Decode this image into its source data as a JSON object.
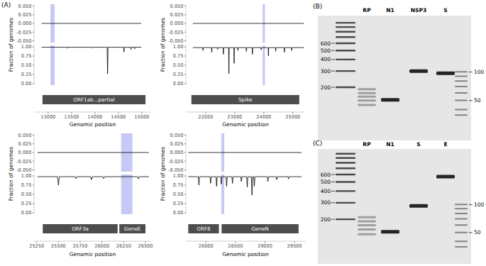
{
  "panel_label": "(A)",
  "chart_data": [
    {
      "type": "line",
      "xlabel": "Genomic position",
      "ylabel": "Fraction of genomes",
      "xlim": [
        12700,
        15200
      ],
      "xticks": [
        13000,
        13500,
        14000,
        14500,
        15000
      ],
      "ylim": [
        -0.04,
        1.04
      ],
      "yticks": [
        {
          "value": 0,
          "label": "0.00"
        },
        0.25,
        {
          "value": 0.5,
          "label": "0.50"
        },
        0.75,
        {
          "value": 1,
          "label": "1.00"
        }
      ],
      "y2lim": [
        -0.055,
        0.055
      ],
      "y2ticks": [
        {
          "value": -0.05,
          "label": "-0.050"
        },
        -0.025,
        {
          "value": 0,
          "label": "0.000"
        },
        0.025,
        {
          "value": 0.05,
          "label": "0.050"
        }
      ],
      "grid": false,
      "highlight": [
        13050,
        13140
      ],
      "genes": [
        {
          "label": "ORF1ab...partial",
          "start": 12880,
          "end": 15080
        }
      ],
      "series": [
        {
          "color": "#000000",
          "x": [
            12860,
            13400,
            13410,
            13420,
            13930,
            13940,
            13950,
            14260,
            14270,
            14280,
            14610,
            14620,
            14630,
            14760,
            14770,
            14780,
            14840,
            14850,
            14860,
            14990
          ],
          "values": [
            0.99,
            0.99,
            0.96,
            0.99,
            0.99,
            0.97,
            0.99,
            0.99,
            0.27,
            0.99,
            0.99,
            0.86,
            0.99,
            0.99,
            0.93,
            0.99,
            0.99,
            0.95,
            0.99,
            0.99
          ]
        },
        {
          "color": "#000000",
          "axis": "y2",
          "x": [
            12860,
            14990
          ],
          "values": [
            0,
            0
          ]
        }
      ]
    },
    {
      "type": "line",
      "xlabel": "Genomic position",
      "ylabel": "Fraction of genomes",
      "xlim": [
        21320,
        25420
      ],
      "xticks": [
        22000,
        23000,
        24000,
        25000
      ],
      "ylim": [
        -0.04,
        1.04
      ],
      "yticks": [
        {
          "value": 0,
          "label": "0.00"
        },
        0.25,
        {
          "value": 0.5,
          "label": "0.50"
        },
        0.75,
        {
          "value": 1,
          "label": "1.00"
        }
      ],
      "y2lim": [
        -0.055,
        0.055
      ],
      "y2ticks": [
        {
          "value": -0.05,
          "label": "-0.050"
        },
        -0.025,
        {
          "value": 0,
          "label": "0.000"
        },
        0.025,
        {
          "value": 0.05,
          "label": "0.050"
        }
      ],
      "grid": false,
      "highlight": [
        23960,
        24040
      ],
      "genes": [
        {
          "label": "Spike",
          "start": 21510,
          "end": 25220
        }
      ],
      "series": [
        {
          "color": "#000000",
          "x": [
            21560,
            21900,
            21910,
            21920,
            22200,
            22210,
            22220,
            22400,
            22410,
            22420,
            22600,
            22610,
            22620,
            22790,
            22800,
            22810,
            22970,
            22980,
            22990,
            23100,
            23110,
            23120,
            23390,
            23400,
            23410,
            23600,
            23610,
            23620,
            23900,
            23910,
            23920,
            24150,
            24160,
            24170,
            24400,
            24410,
            24420,
            24700,
            24710,
            24720,
            24950,
            24960,
            24970,
            25380
          ],
          "values": [
            0.98,
            0.98,
            0.9,
            0.98,
            0.98,
            0.85,
            0.98,
            0.98,
            0.93,
            0.98,
            0.98,
            0.8,
            0.98,
            0.98,
            0.27,
            0.98,
            0.98,
            0.55,
            0.98,
            0.98,
            0.9,
            0.98,
            0.98,
            0.88,
            0.98,
            0.98,
            0.8,
            0.98,
            0.98,
            0.92,
            0.98,
            0.98,
            0.75,
            0.98,
            0.98,
            0.88,
            0.98,
            0.98,
            0.85,
            0.98,
            0.98,
            0.9,
            0.98,
            0.98
          ]
        },
        {
          "color": "#000000",
          "axis": "y2",
          "x": [
            21560,
            25380
          ],
          "values": [
            0,
            0
          ]
        }
      ]
    },
    {
      "type": "line",
      "xlabel": "Genomic position",
      "ylabel": "Fraction of genomes",
      "xlim": [
        25220,
        26565
      ],
      "xticks": [
        25250,
        25500,
        25750,
        26000,
        26250,
        26500
      ],
      "ylim": [
        -0.04,
        1.04
      ],
      "yticks": [
        {
          "value": 0,
          "label": "0.00"
        },
        0.25,
        {
          "value": 0.5,
          "label": "0.50"
        },
        0.75,
        {
          "value": 1,
          "label": "1.00"
        }
      ],
      "y2lim": [
        -0.055,
        0.055
      ],
      "y2ticks": [
        {
          "value": -0.05,
          "label": "-0.050"
        },
        -0.025,
        {
          "value": 0,
          "label": "0.000"
        },
        0.025,
        {
          "value": 0.05,
          "label": "0.050"
        }
      ],
      "grid": false,
      "highlight": [
        26220,
        26350
      ],
      "genes": [
        {
          "label": "ORF3a",
          "start": 25320,
          "end": 26180
        },
        {
          "label": "GeneE",
          "start": 26200,
          "end": 26500
        }
      ],
      "series": [
        {
          "color": "#000000",
          "x": [
            25260,
            25490,
            25500,
            25510,
            25690,
            25700,
            25710,
            25870,
            25880,
            25890,
            26010,
            26020,
            26030,
            26410,
            26420,
            26430,
            26540
          ],
          "values": [
            0.98,
            0.98,
            0.75,
            0.98,
            0.98,
            0.93,
            0.98,
            0.98,
            0.9,
            0.98,
            0.98,
            0.93,
            0.98,
            0.98,
            0.92,
            0.98,
            0.98
          ]
        },
        {
          "color": "#000000",
          "axis": "y2",
          "x": [
            25260,
            26540
          ],
          "values": [
            0,
            0
          ]
        }
      ]
    },
    {
      "type": "line",
      "xlabel": "Genomic position",
      "ylabel": "Fraction of genomes",
      "xlim": [
        27660,
        29680
      ],
      "xticks": [
        28000,
        28500,
        29000,
        29500
      ],
      "ylim": [
        -0.04,
        1.04
      ],
      "yticks": [
        {
          "value": 0,
          "label": "0.00"
        },
        0.25,
        {
          "value": 0.5,
          "label": "0.50"
        },
        0.75,
        {
          "value": 1,
          "label": "1.00"
        }
      ],
      "y2lim": [
        -0.055,
        0.055
      ],
      "y2ticks": [
        {
          "value": -0.05,
          "label": "-0.050"
        },
        -0.025,
        {
          "value": 0,
          "label": "0.000"
        },
        0.025,
        {
          "value": 0.05,
          "label": "0.050"
        }
      ],
      "grid": false,
      "highlight": [
        28260,
        28310
      ],
      "genes": [
        {
          "label": "ORF8",
          "start": 27700,
          "end": 28220
        },
        {
          "label": "GeneN",
          "start": 28265,
          "end": 29570
        }
      ],
      "series": [
        {
          "color": "#000000",
          "x": [
            27700,
            27870,
            27880,
            27890,
            28070,
            28080,
            28090,
            28170,
            28180,
            28190,
            28250,
            28260,
            28268,
            28340,
            28350,
            28360,
            28440,
            28450,
            28460,
            28590,
            28600,
            28610,
            28690,
            28700,
            28710,
            28770,
            28780,
            28790,
            28810,
            28820,
            28830,
            29040,
            29050,
            29060,
            29190,
            29200,
            29210,
            29390,
            29400,
            29410,
            29620
          ],
          "values": [
            0.98,
            0.98,
            0.75,
            0.98,
            0.98,
            0.8,
            0.98,
            0.98,
            0.72,
            0.98,
            0.98,
            0.78,
            0.98,
            0.98,
            0.72,
            0.98,
            0.98,
            0.8,
            0.98,
            0.98,
            0.85,
            0.98,
            0.98,
            0.7,
            0.98,
            0.98,
            0.48,
            0.98,
            0.98,
            0.72,
            0.98,
            0.98,
            0.85,
            0.98,
            0.98,
            0.9,
            0.98,
            0.98,
            0.92,
            0.98,
            0.98
          ]
        },
        {
          "color": "#000000",
          "axis": "y2",
          "x": [
            27700,
            29620
          ],
          "values": [
            0,
            0
          ]
        }
      ]
    }
  ],
  "gels": [
    {
      "label": "(B)",
      "lanes": [
        {
          "label": "RP",
          "bands": [
            66,
            60,
            55,
            50,
            45
          ]
        },
        {
          "label": "N1",
          "bands": [
            51
          ]
        },
        {
          "label": "NSP3",
          "bands": [
            102
          ]
        },
        {
          "label": "S",
          "bands": [
            97
          ]
        }
      ],
      "ladders": [
        {
          "labels": [
            600,
            500,
            400,
            300,
            200
          ],
          "bands": [
            1000,
            900,
            800,
            700,
            600,
            500,
            400,
            300,
            200
          ],
          "ylim": [
            53,
            1197
          ],
          "log": true
        },
        {
          "labels": [
            100,
            50
          ],
          "bands": [
            100,
            90,
            80,
            70,
            60,
            50,
            40,
            35
          ],
          "ylim": [
            19,
            393
          ],
          "log": true
        }
      ]
    },
    {
      "label": "(C)",
      "lanes": [
        {
          "label": "RP",
          "bands": [
            73,
            66,
            60,
            54,
            48
          ]
        },
        {
          "label": "N1",
          "bands": [
            51
          ]
        },
        {
          "label": "S",
          "bands": [
            97
          ]
        },
        {
          "label": "E",
          "bands": [
            200
          ]
        }
      ],
      "ladders": [
        {
          "labels": [
            600,
            500,
            400,
            300,
            200
          ],
          "bands": [
            1000,
            900,
            800,
            700,
            600,
            500,
            400,
            300,
            200
          ],
          "ylim": [
            67,
            1124
          ],
          "log": true
        },
        {
          "labels": [
            100,
            50
          ],
          "bands": [
            100,
            90,
            80,
            70,
            60,
            50,
            40,
            35
          ],
          "ylim": [
            23,
            398
          ],
          "log": true
        }
      ]
    }
  ]
}
